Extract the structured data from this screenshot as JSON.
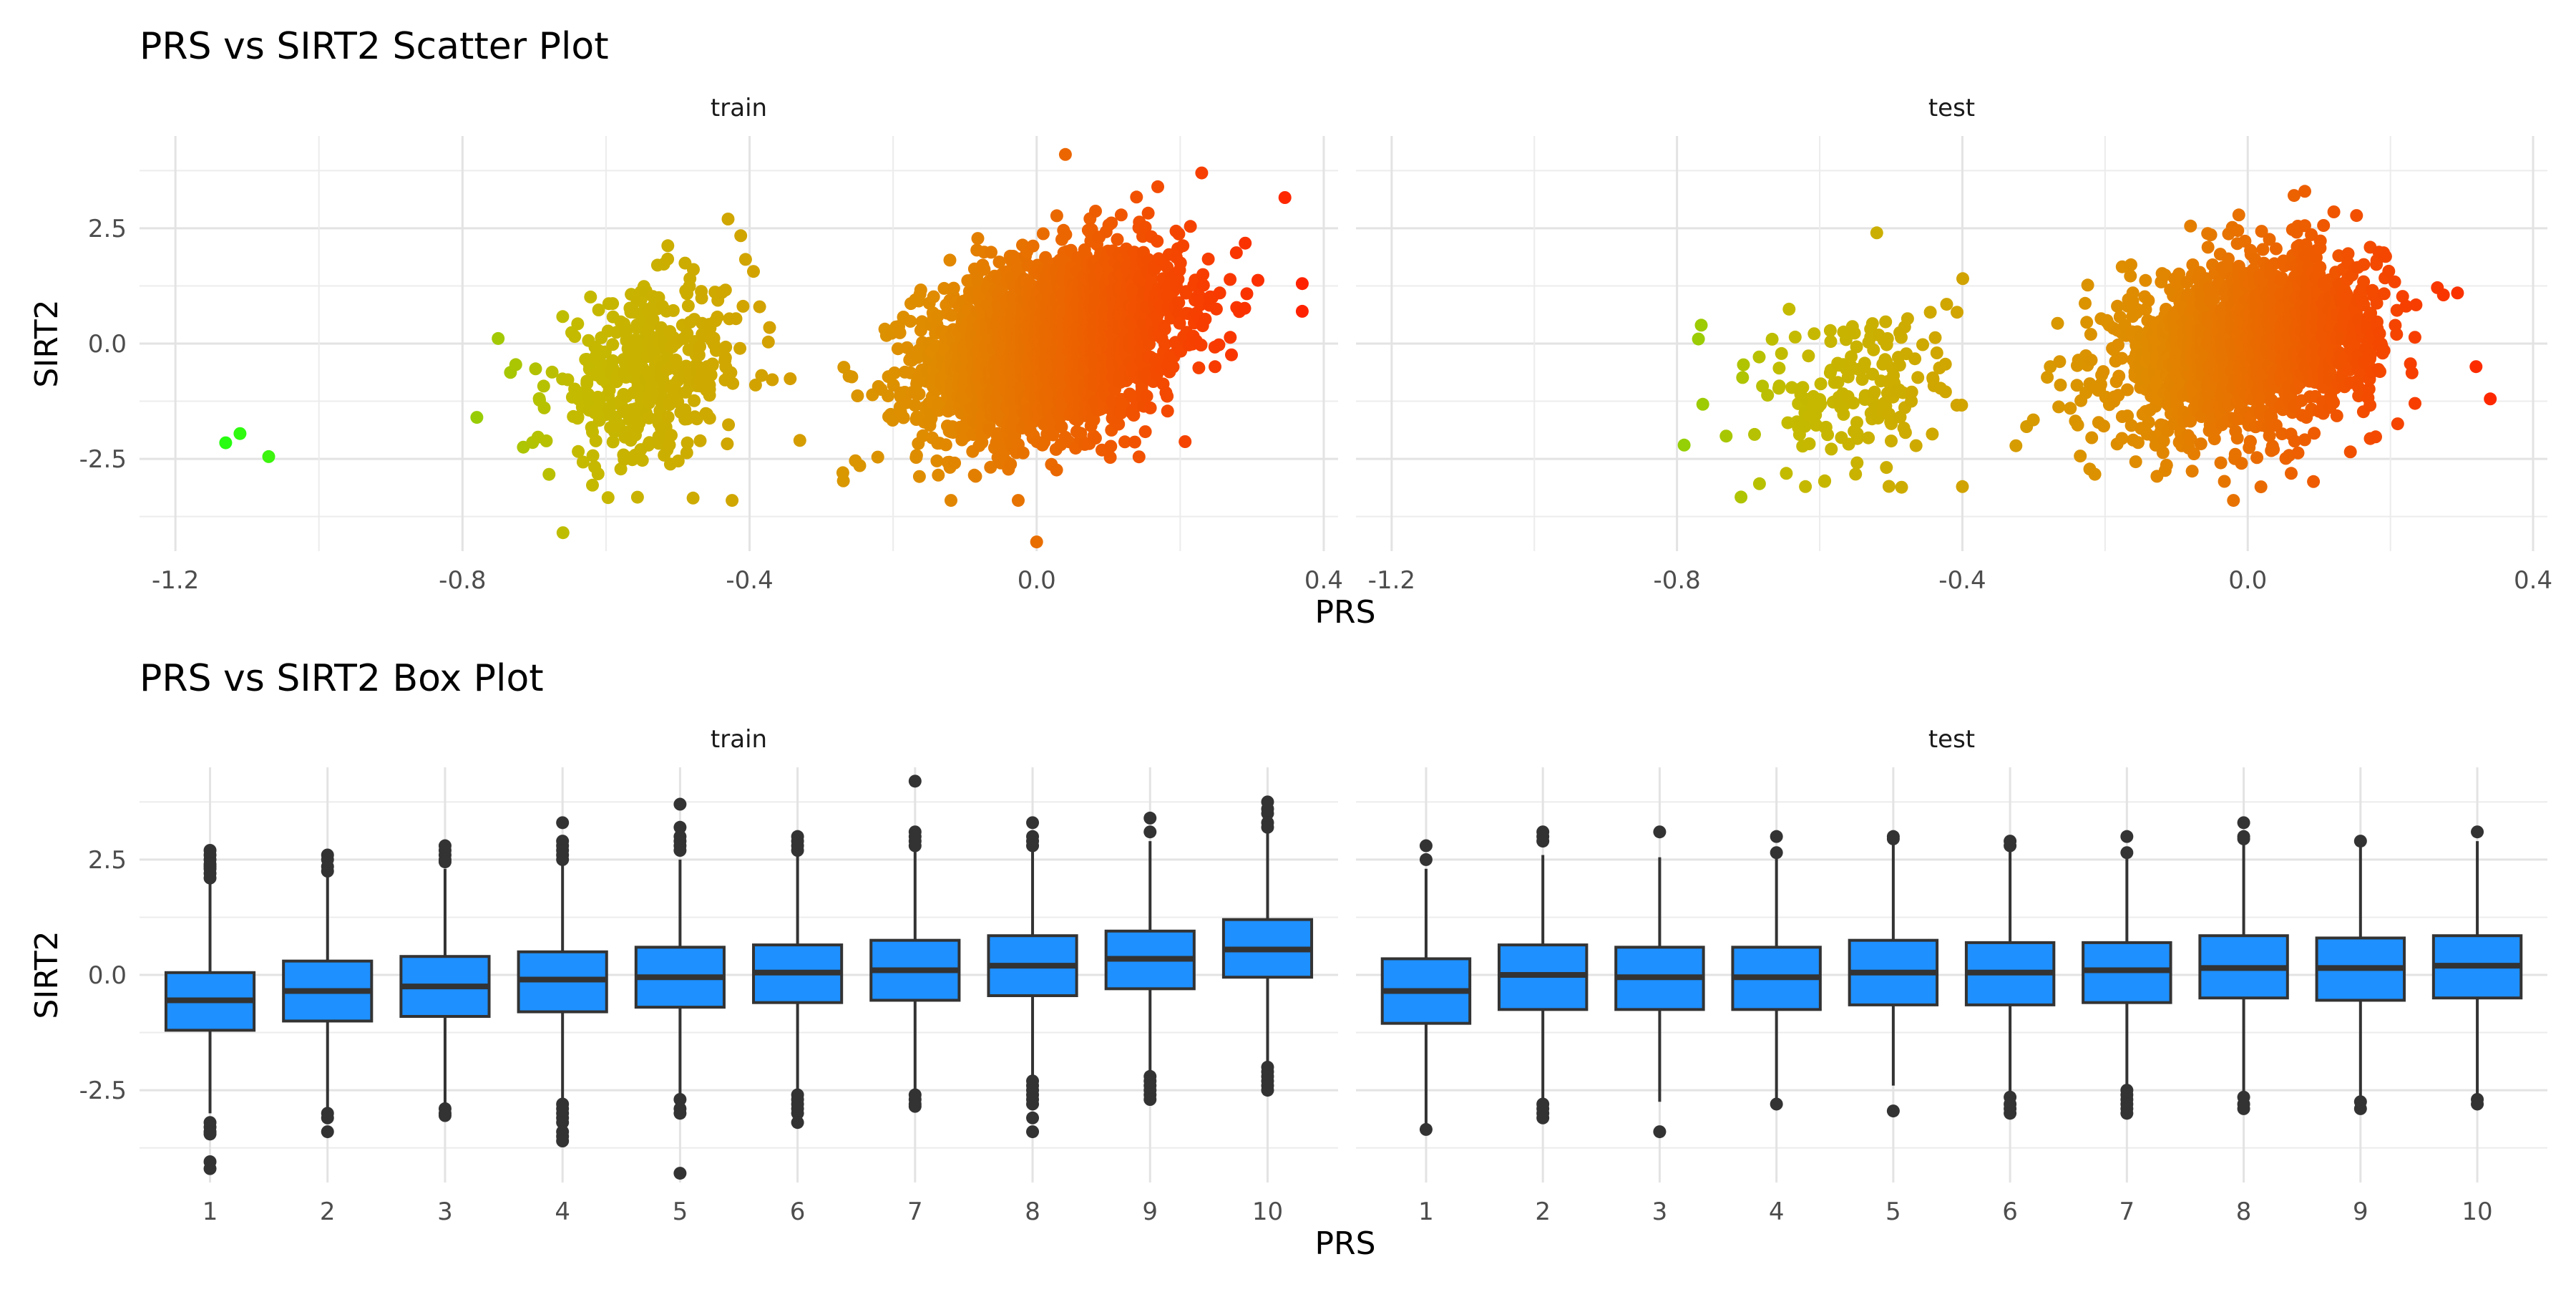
{
  "chart_data": [
    {
      "type": "scatter",
      "title": "PRS vs SIRT2 Scatter Plot",
      "xlabel": "PRS",
      "ylabel": "SIRT2",
      "facets": [
        "train",
        "test"
      ],
      "xlim": [
        -1.25,
        0.42
      ],
      "ylim": [
        -4.5,
        4.5
      ],
      "x_ticks": [
        -1.2,
        -0.8,
        -0.4,
        0.0,
        0.4
      ],
      "x_tick_labels": [
        "-1.2",
        "-0.8",
        "-0.4",
        "0.0",
        "0.4"
      ],
      "y_ticks": [
        -2.5,
        0.0,
        2.5
      ],
      "y_tick_labels": [
        "-2.5",
        "0.0",
        "2.5"
      ],
      "color_gradient": [
        "#22ff11",
        "#c4bb00",
        "#e08a00",
        "#ff2200"
      ],
      "color_by": "PRS",
      "grid": true,
      "series": [
        {
          "facet": "train",
          "clusters": [
            {
              "x_mean": 0.02,
              "x_sd": 0.09,
              "y_mean": 0.0,
              "y_sd": 1.0,
              "n": 2600,
              "corr": 0.3
            },
            {
              "x_mean": -0.54,
              "x_sd": 0.07,
              "y_mean": -0.7,
              "y_sd": 0.95,
              "n": 420,
              "corr": 0.25
            }
          ],
          "points": [
            {
              "x": -1.13,
              "y": -2.15
            },
            {
              "x": -1.11,
              "y": -1.95
            },
            {
              "x": -1.07,
              "y": -2.45
            },
            {
              "x": -0.78,
              "y": -1.6
            },
            {
              "x": -0.66,
              "y": -4.1
            },
            {
              "x": 0.04,
              "y": 4.1
            },
            {
              "x": 0.37,
              "y": 1.3
            },
            {
              "x": 0.37,
              "y": 0.7
            },
            {
              "x": 0.0,
              "y": -4.3
            },
            {
              "x": -0.43,
              "y": 2.7
            },
            {
              "x": 0.23,
              "y": 3.7
            },
            {
              "x": -0.33,
              "y": -2.1
            },
            {
              "x": -0.27,
              "y": -2.8
            }
          ]
        },
        {
          "facet": "test",
          "clusters": [
            {
              "x_mean": 0.0,
              "x_sd": 0.09,
              "y_mean": 0.0,
              "y_sd": 0.95,
              "n": 1800,
              "corr": 0.25
            },
            {
              "x_mean": -0.54,
              "x_sd": 0.07,
              "y_mean": -1.0,
              "y_sd": 0.95,
              "n": 180,
              "corr": 0.2
            }
          ],
          "points": [
            {
              "x": -0.77,
              "y": 0.1
            },
            {
              "x": -0.79,
              "y": -2.2
            },
            {
              "x": -0.62,
              "y": -3.1
            },
            {
              "x": -0.52,
              "y": 2.4
            },
            {
              "x": 0.34,
              "y": -1.2
            },
            {
              "x": 0.32,
              "y": -0.5
            },
            {
              "x": 0.08,
              "y": 3.3
            },
            {
              "x": -0.4,
              "y": -3.1
            },
            {
              "x": -0.22,
              "y": 0.2
            },
            {
              "x": -0.31,
              "y": -1.8
            },
            {
              "x": -0.02,
              "y": -3.4
            }
          ]
        }
      ]
    },
    {
      "type": "box",
      "title": "PRS vs SIRT2 Box Plot",
      "xlabel": "PRS",
      "ylabel": "SIRT2",
      "facets": [
        "train",
        "test"
      ],
      "categories": [
        "1",
        "2",
        "3",
        "4",
        "5",
        "6",
        "7",
        "8",
        "9",
        "10"
      ],
      "ylim": [
        -4.5,
        4.5
      ],
      "y_ticks": [
        -2.5,
        0.0,
        2.5
      ],
      "y_tick_labels": [
        "-2.5",
        "0.0",
        "2.5"
      ],
      "box_fill": "#1e90ff",
      "box_stroke": "#333333",
      "grid": true,
      "series": [
        {
          "facet": "train",
          "boxes": [
            {
              "q1": -1.2,
              "median": -0.55,
              "q3": 0.05,
              "lower": -3.0,
              "upper": 2.0,
              "outliers": [
                2.7,
                2.6,
                2.5,
                2.4,
                2.35,
                2.3,
                2.2,
                2.1,
                -3.2,
                -3.3,
                -3.4,
                -3.45,
                -4.05,
                -4.2
              ]
            },
            {
              "q1": -1.0,
              "median": -0.35,
              "q3": 0.3,
              "lower": -2.95,
              "upper": 2.2,
              "outliers": [
                2.6,
                2.5,
                2.35,
                2.25,
                -3.0,
                -3.1,
                -3.4
              ]
            },
            {
              "q1": -0.9,
              "median": -0.25,
              "q3": 0.4,
              "lower": -2.85,
              "upper": 2.3,
              "outliers": [
                2.8,
                2.7,
                2.6,
                2.5,
                2.45,
                -2.9,
                -3.0,
                -3.05
              ]
            },
            {
              "q1": -0.8,
              "median": -0.1,
              "q3": 0.5,
              "lower": -2.7,
              "upper": 2.4,
              "outliers": [
                3.3,
                2.9,
                2.8,
                2.7,
                2.6,
                2.5,
                -2.8,
                -2.9,
                -3.0,
                -3.1,
                -3.2,
                -3.4,
                -3.5,
                -3.6
              ]
            },
            {
              "q1": -0.7,
              "median": -0.05,
              "q3": 0.6,
              "lower": -2.6,
              "upper": 2.5,
              "outliers": [
                3.7,
                3.2,
                3.0,
                2.9,
                2.8,
                2.7,
                -2.7,
                -2.9,
                -3.0,
                -4.3
              ]
            },
            {
              "q1": -0.6,
              "median": 0.05,
              "q3": 0.65,
              "lower": -2.5,
              "upper": 2.6,
              "outliers": [
                3.0,
                2.9,
                2.8,
                2.7,
                -2.6,
                -2.7,
                -2.8,
                -2.9,
                -3.0,
                -3.2
              ]
            },
            {
              "q1": -0.55,
              "median": 0.1,
              "q3": 0.75,
              "lower": -2.5,
              "upper": 2.7,
              "outliers": [
                4.2,
                3.1,
                3.0,
                2.9,
                2.8,
                -2.6,
                -2.7,
                -2.8,
                -2.85
              ]
            },
            {
              "q1": -0.45,
              "median": 0.2,
              "q3": 0.85,
              "lower": -2.2,
              "upper": 2.7,
              "outliers": [
                3.3,
                3.0,
                2.9,
                2.8,
                -2.3,
                -2.4,
                -2.5,
                -2.6,
                -2.7,
                -2.8,
                -3.1,
                -3.4
              ]
            },
            {
              "q1": -0.3,
              "median": 0.35,
              "q3": 0.95,
              "lower": -2.1,
              "upper": 2.9,
              "outliers": [
                3.4,
                3.1,
                -2.2,
                -2.3,
                -2.4,
                -2.5,
                -2.6,
                -2.7
              ]
            },
            {
              "q1": -0.05,
              "median": 0.55,
              "q3": 1.2,
              "lower": -1.9,
              "upper": 3.1,
              "outliers": [
                3.75,
                3.6,
                3.5,
                3.3,
                3.2,
                -2.0,
                -2.1,
                -2.2,
                -2.3,
                -2.4,
                -2.5
              ]
            }
          ]
        },
        {
          "facet": "test",
          "boxes": [
            {
              "q1": -1.05,
              "median": -0.35,
              "q3": 0.35,
              "lower": -3.3,
              "upper": 2.3,
              "outliers": [
                2.8,
                2.5,
                -3.35
              ]
            },
            {
              "q1": -0.75,
              "median": 0.0,
              "q3": 0.65,
              "lower": -2.7,
              "upper": 2.6,
              "outliers": [
                3.1,
                3.0,
                2.9,
                -2.8,
                -2.9,
                -3.0,
                -3.1
              ]
            },
            {
              "q1": -0.75,
              "median": -0.05,
              "q3": 0.6,
              "lower": -2.75,
              "upper": 2.55,
              "outliers": [
                3.1,
                -3.4
              ]
            },
            {
              "q1": -0.75,
              "median": -0.05,
              "q3": 0.6,
              "lower": -2.7,
              "upper": 2.55,
              "outliers": [
                3.0,
                2.65,
                -2.8
              ]
            },
            {
              "q1": -0.65,
              "median": 0.05,
              "q3": 0.75,
              "lower": -2.4,
              "upper": 2.9,
              "outliers": [
                3.0,
                2.95,
                -2.95
              ]
            },
            {
              "q1": -0.65,
              "median": 0.05,
              "q3": 0.7,
              "lower": -2.6,
              "upper": 2.7,
              "outliers": [
                2.9,
                2.8,
                -2.65,
                -2.8,
                -2.9,
                -3.0
              ]
            },
            {
              "q1": -0.6,
              "median": 0.1,
              "q3": 0.7,
              "lower": -2.55,
              "upper": 2.7,
              "outliers": [
                3.0,
                2.65,
                -2.5,
                -2.6,
                -2.7,
                -2.8,
                -2.9,
                -3.0
              ]
            },
            {
              "q1": -0.5,
              "median": 0.15,
              "q3": 0.85,
              "lower": -2.6,
              "upper": 2.9,
              "outliers": [
                3.3,
                3.0,
                2.95,
                -2.65,
                -2.8,
                -2.9
              ]
            },
            {
              "q1": -0.55,
              "median": 0.15,
              "q3": 0.8,
              "lower": -2.7,
              "upper": 2.85,
              "outliers": [
                2.9,
                -2.75,
                -2.9
              ]
            },
            {
              "q1": -0.5,
              "median": 0.2,
              "q3": 0.85,
              "lower": -2.6,
              "upper": 2.9,
              "outliers": [
                3.1,
                -2.7,
                -2.8
              ]
            }
          ]
        }
      ]
    }
  ]
}
